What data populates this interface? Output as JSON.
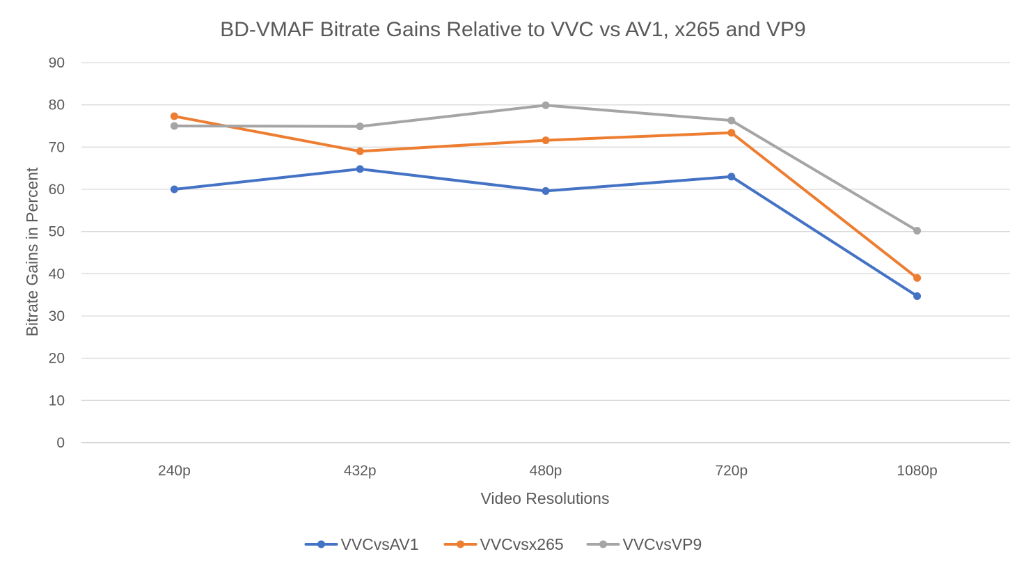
{
  "chart_data": {
    "type": "line",
    "title": "BD-VMAF Bitrate Gains Relative to VVC vs AV1, x265 and VP9",
    "xlabel": "Video Resolutions",
    "ylabel": "Bitrate Gains in Percent",
    "categories": [
      "240p",
      "432p",
      "480p",
      "720p",
      "1080p"
    ],
    "ylim": [
      0,
      90
    ],
    "yticks": [
      0,
      10,
      20,
      30,
      40,
      50,
      60,
      70,
      80,
      90
    ],
    "yticks_text": [
      "0",
      "10",
      "20",
      "30",
      "40",
      "50",
      "60",
      "70",
      "80",
      "90"
    ],
    "grid": true,
    "legend_position": "bottom",
    "series": [
      {
        "name": "VVCvsAV1",
        "color": "#4472c4",
        "values": [
          60.0,
          64.8,
          59.6,
          63.0,
          34.7
        ]
      },
      {
        "name": "VVCvsx265",
        "color": "#ed7d31",
        "values": [
          77.3,
          69.0,
          71.6,
          73.4,
          39.0
        ]
      },
      {
        "name": "VVCvsVP9",
        "color": "#a5a5a5",
        "values": [
          75.0,
          74.9,
          79.9,
          76.3,
          50.2
        ]
      }
    ]
  }
}
